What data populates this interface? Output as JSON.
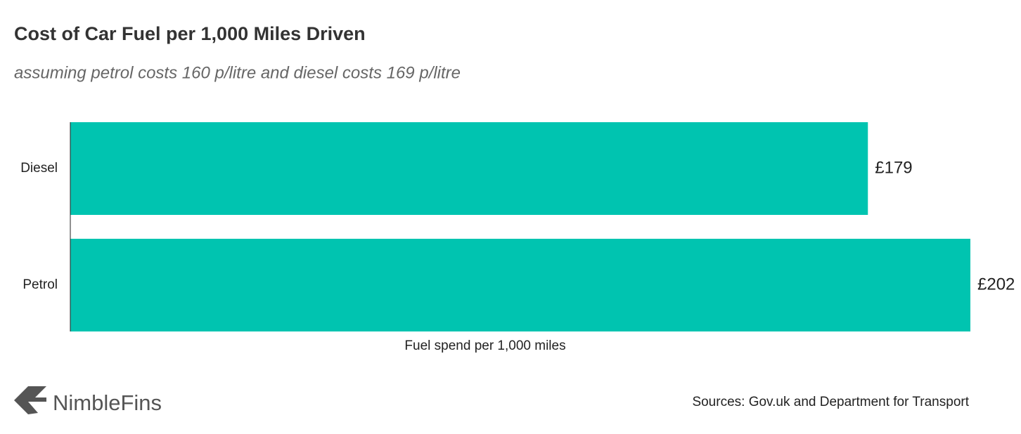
{
  "chart_data": {
    "type": "hbar",
    "title": "Cost of Car Fuel per 1,000 Miles Driven",
    "subtitle": "assuming petrol costs 160 p/litre and diesel costs 169 p/litre",
    "x_label": "Fuel spend per 1,000 miles",
    "categories": [
      "Diesel",
      "Petrol"
    ],
    "values": [
      179,
      202
    ],
    "value_labels": [
      "£179",
      "£202"
    ],
    "color": "#00c4b0",
    "xlim": [
      0,
      202
    ]
  },
  "footer": {
    "logo": "NimbleFins",
    "source": "Sources: Gov.uk and Department for Transport"
  }
}
